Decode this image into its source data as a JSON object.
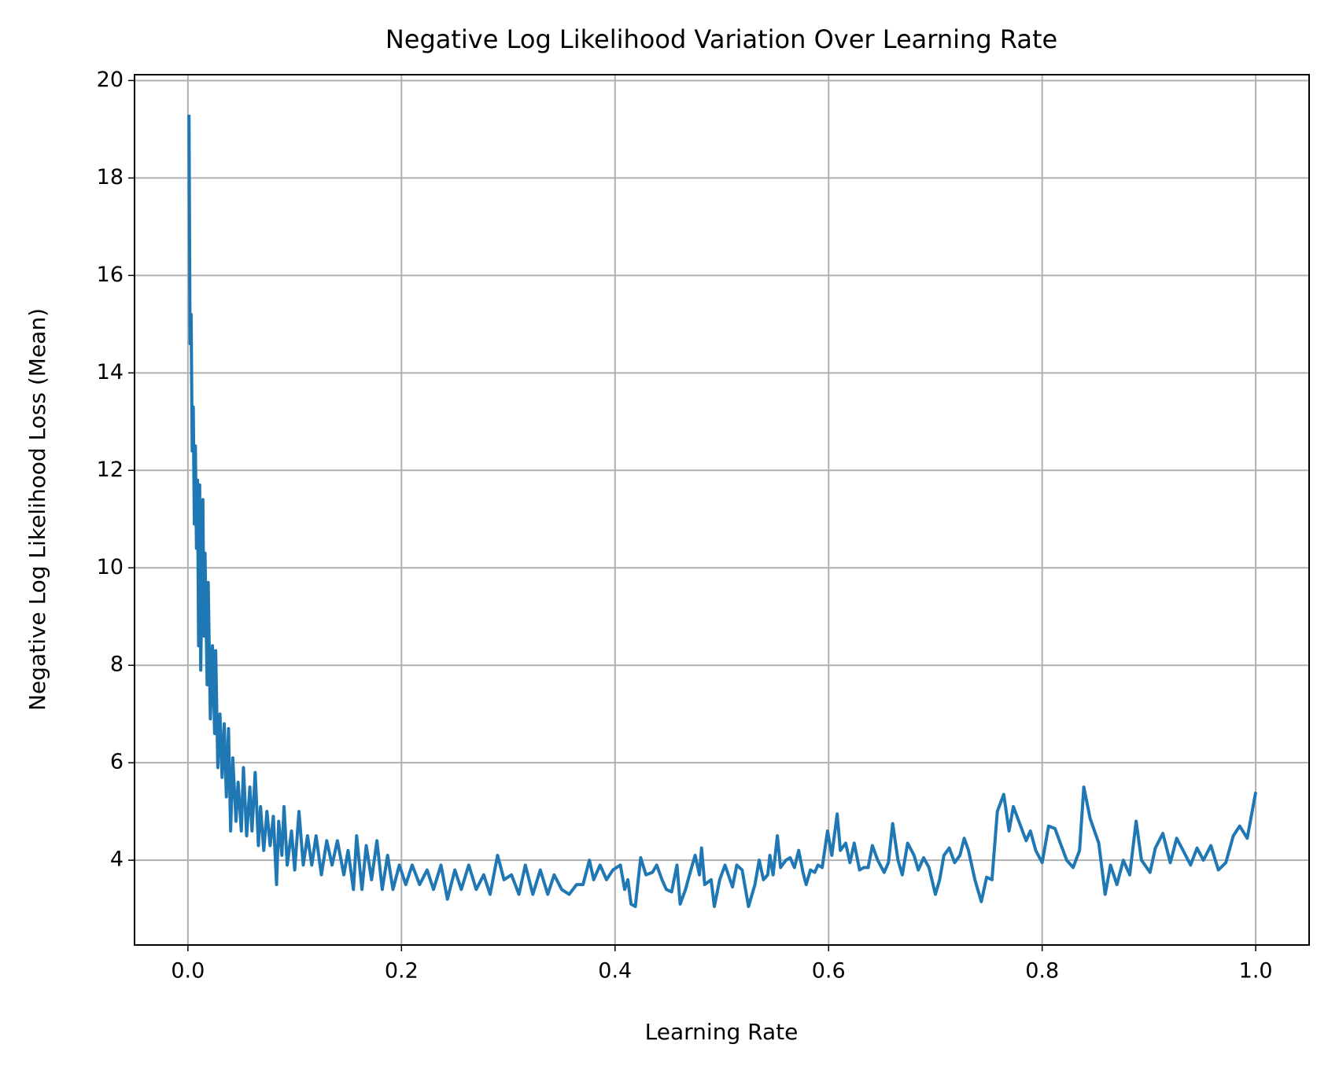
{
  "chart_data": {
    "type": "line",
    "title": "Negative Log Likelihood Variation Over Learning Rate",
    "x_label": "Learning Rate",
    "y_label": "Negative Log Likelihood Loss (Mean)",
    "color": "#1f77b4",
    "grid": true,
    "xlim": [
      -0.05,
      1.05
    ],
    "ylim": [
      2.26,
      20.12
    ],
    "xticks": [
      {
        "value": 0,
        "label": "0.0"
      },
      0.2,
      0.4,
      0.6,
      0.8,
      {
        "value": 1,
        "label": "1.0"
      }
    ],
    "yticks": [
      4,
      6,
      8,
      10,
      12,
      14,
      16,
      18,
      20
    ],
    "x": [
      0.001,
      0.002,
      0.003,
      0.004,
      0.005,
      0.006,
      0.007,
      0.008,
      0.009,
      0.01,
      0.011,
      0.012,
      0.014,
      0.015,
      0.016,
      0.018,
      0.019,
      0.021,
      0.023,
      0.025,
      0.026,
      0.028,
      0.03,
      0.032,
      0.034,
      0.036,
      0.038,
      0.04,
      0.042,
      0.045,
      0.047,
      0.05,
      0.052,
      0.055,
      0.058,
      0.06,
      0.063,
      0.066,
      0.068,
      0.071,
      0.074,
      0.077,
      0.08,
      0.083,
      0.085,
      0.088,
      0.09,
      0.093,
      0.097,
      0.1,
      0.104,
      0.108,
      0.112,
      0.116,
      0.12,
      0.125,
      0.13,
      0.135,
      0.14,
      0.146,
      0.15,
      0.155,
      0.158,
      0.163,
      0.167,
      0.172,
      0.177,
      0.182,
      0.187,
      0.192,
      0.198,
      0.204,
      0.21,
      0.217,
      0.224,
      0.23,
      0.237,
      0.243,
      0.25,
      0.256,
      0.263,
      0.27,
      0.277,
      0.283,
      0.29,
      0.296,
      0.303,
      0.31,
      0.316,
      0.323,
      0.33,
      0.337,
      0.343,
      0.35,
      0.357,
      0.364,
      0.37,
      0.376,
      0.38,
      0.386,
      0.392,
      0.398,
      0.405,
      0.409,
      0.412,
      0.415,
      0.419,
      0.424,
      0.429,
      0.435,
      0.439,
      0.444,
      0.448,
      0.453,
      0.458,
      0.461,
      0.466,
      0.471,
      0.475,
      0.479,
      0.481,
      0.484,
      0.49,
      0.493,
      0.498,
      0.503,
      0.51,
      0.514,
      0.519,
      0.525,
      0.531,
      0.535,
      0.539,
      0.543,
      0.545,
      0.548,
      0.552,
      0.555,
      0.56,
      0.564,
      0.568,
      0.572,
      0.576,
      0.579,
      0.583,
      0.587,
      0.59,
      0.594,
      0.599,
      0.603,
      0.608,
      0.611,
      0.616,
      0.62,
      0.624,
      0.629,
      0.633,
      0.637,
      0.641,
      0.646,
      0.652,
      0.656,
      0.66,
      0.665,
      0.669,
      0.674,
      0.68,
      0.684,
      0.689,
      0.694,
      0.7,
      0.704,
      0.708,
      0.713,
      0.718,
      0.723,
      0.727,
      0.731,
      0.737,
      0.743,
      0.748,
      0.753,
      0.758,
      0.764,
      0.769,
      0.773,
      0.779,
      0.785,
      0.789,
      0.794,
      0.8,
      0.806,
      0.812,
      0.817,
      0.823,
      0.829,
      0.835,
      0.839,
      0.845,
      0.853,
      0.859,
      0.864,
      0.87,
      0.876,
      0.882,
      0.888,
      0.893,
      0.901,
      0.906,
      0.913,
      0.92,
      0.926,
      0.932,
      0.939,
      0.945,
      0.951,
      0.958,
      0.965,
      0.972,
      0.979,
      0.985,
      0.992,
      1.0
    ],
    "values": [
      19.3,
      14.6,
      15.2,
      12.4,
      13.3,
      10.9,
      12.5,
      10.4,
      11.8,
      8.4,
      11.7,
      7.9,
      11.4,
      8.6,
      10.3,
      7.6,
      9.7,
      6.9,
      8.4,
      6.6,
      8.3,
      5.9,
      7.0,
      5.7,
      6.8,
      5.3,
      6.7,
      4.6,
      6.1,
      4.8,
      5.6,
      4.6,
      5.9,
      4.5,
      5.5,
      4.6,
      5.8,
      4.3,
      5.1,
      4.2,
      5.0,
      4.3,
      4.9,
      3.5,
      4.8,
      4.1,
      5.1,
      3.9,
      4.6,
      3.8,
      5.0,
      3.9,
      4.5,
      3.9,
      4.5,
      3.7,
      4.4,
      3.9,
      4.4,
      3.7,
      4.2,
      3.4,
      4.5,
      3.4,
      4.3,
      3.6,
      4.4,
      3.4,
      4.1,
      3.4,
      3.9,
      3.5,
      3.9,
      3.5,
      3.8,
      3.4,
      3.9,
      3.2,
      3.8,
      3.4,
      3.9,
      3.4,
      3.7,
      3.3,
      4.1,
      3.6,
      3.7,
      3.3,
      3.9,
      3.3,
      3.8,
      3.3,
      3.7,
      3.4,
      3.3,
      3.5,
      3.5,
      4.0,
      3.6,
      3.9,
      3.6,
      3.8,
      3.9,
      3.4,
      3.6,
      3.1,
      3.05,
      4.05,
      3.7,
      3.75,
      3.9,
      3.6,
      3.4,
      3.35,
      3.9,
      3.1,
      3.4,
      3.8,
      4.1,
      3.7,
      4.25,
      3.5,
      3.6,
      3.05,
      3.6,
      3.9,
      3.45,
      3.9,
      3.8,
      3.05,
      3.5,
      4.0,
      3.6,
      3.7,
      4.1,
      3.7,
      4.5,
      3.85,
      4.0,
      4.05,
      3.85,
      4.2,
      3.75,
      3.5,
      3.8,
      3.75,
      3.9,
      3.85,
      4.6,
      4.1,
      4.95,
      4.2,
      4.35,
      3.95,
      4.35,
      3.8,
      3.85,
      3.85,
      4.3,
      4.0,
      3.75,
      3.95,
      4.75,
      4.0,
      3.7,
      4.35,
      4.1,
      3.8,
      4.05,
      3.85,
      3.3,
      3.6,
      4.1,
      4.25,
      3.95,
      4.1,
      4.45,
      4.2,
      3.6,
      3.15,
      3.65,
      3.6,
      5.0,
      5.35,
      4.6,
      5.1,
      4.75,
      4.4,
      4.6,
      4.2,
      3.95,
      4.7,
      4.65,
      4.35,
      4.0,
      3.85,
      4.2,
      5.5,
      4.85,
      4.35,
      3.3,
      3.9,
      3.5,
      4.0,
      3.7,
      4.8,
      4.0,
      3.75,
      4.25,
      4.55,
      3.95,
      4.45,
      4.2,
      3.9,
      4.25,
      4.0,
      4.3,
      3.8,
      3.95,
      4.5,
      4.7,
      4.45,
      5.4
    ]
  }
}
